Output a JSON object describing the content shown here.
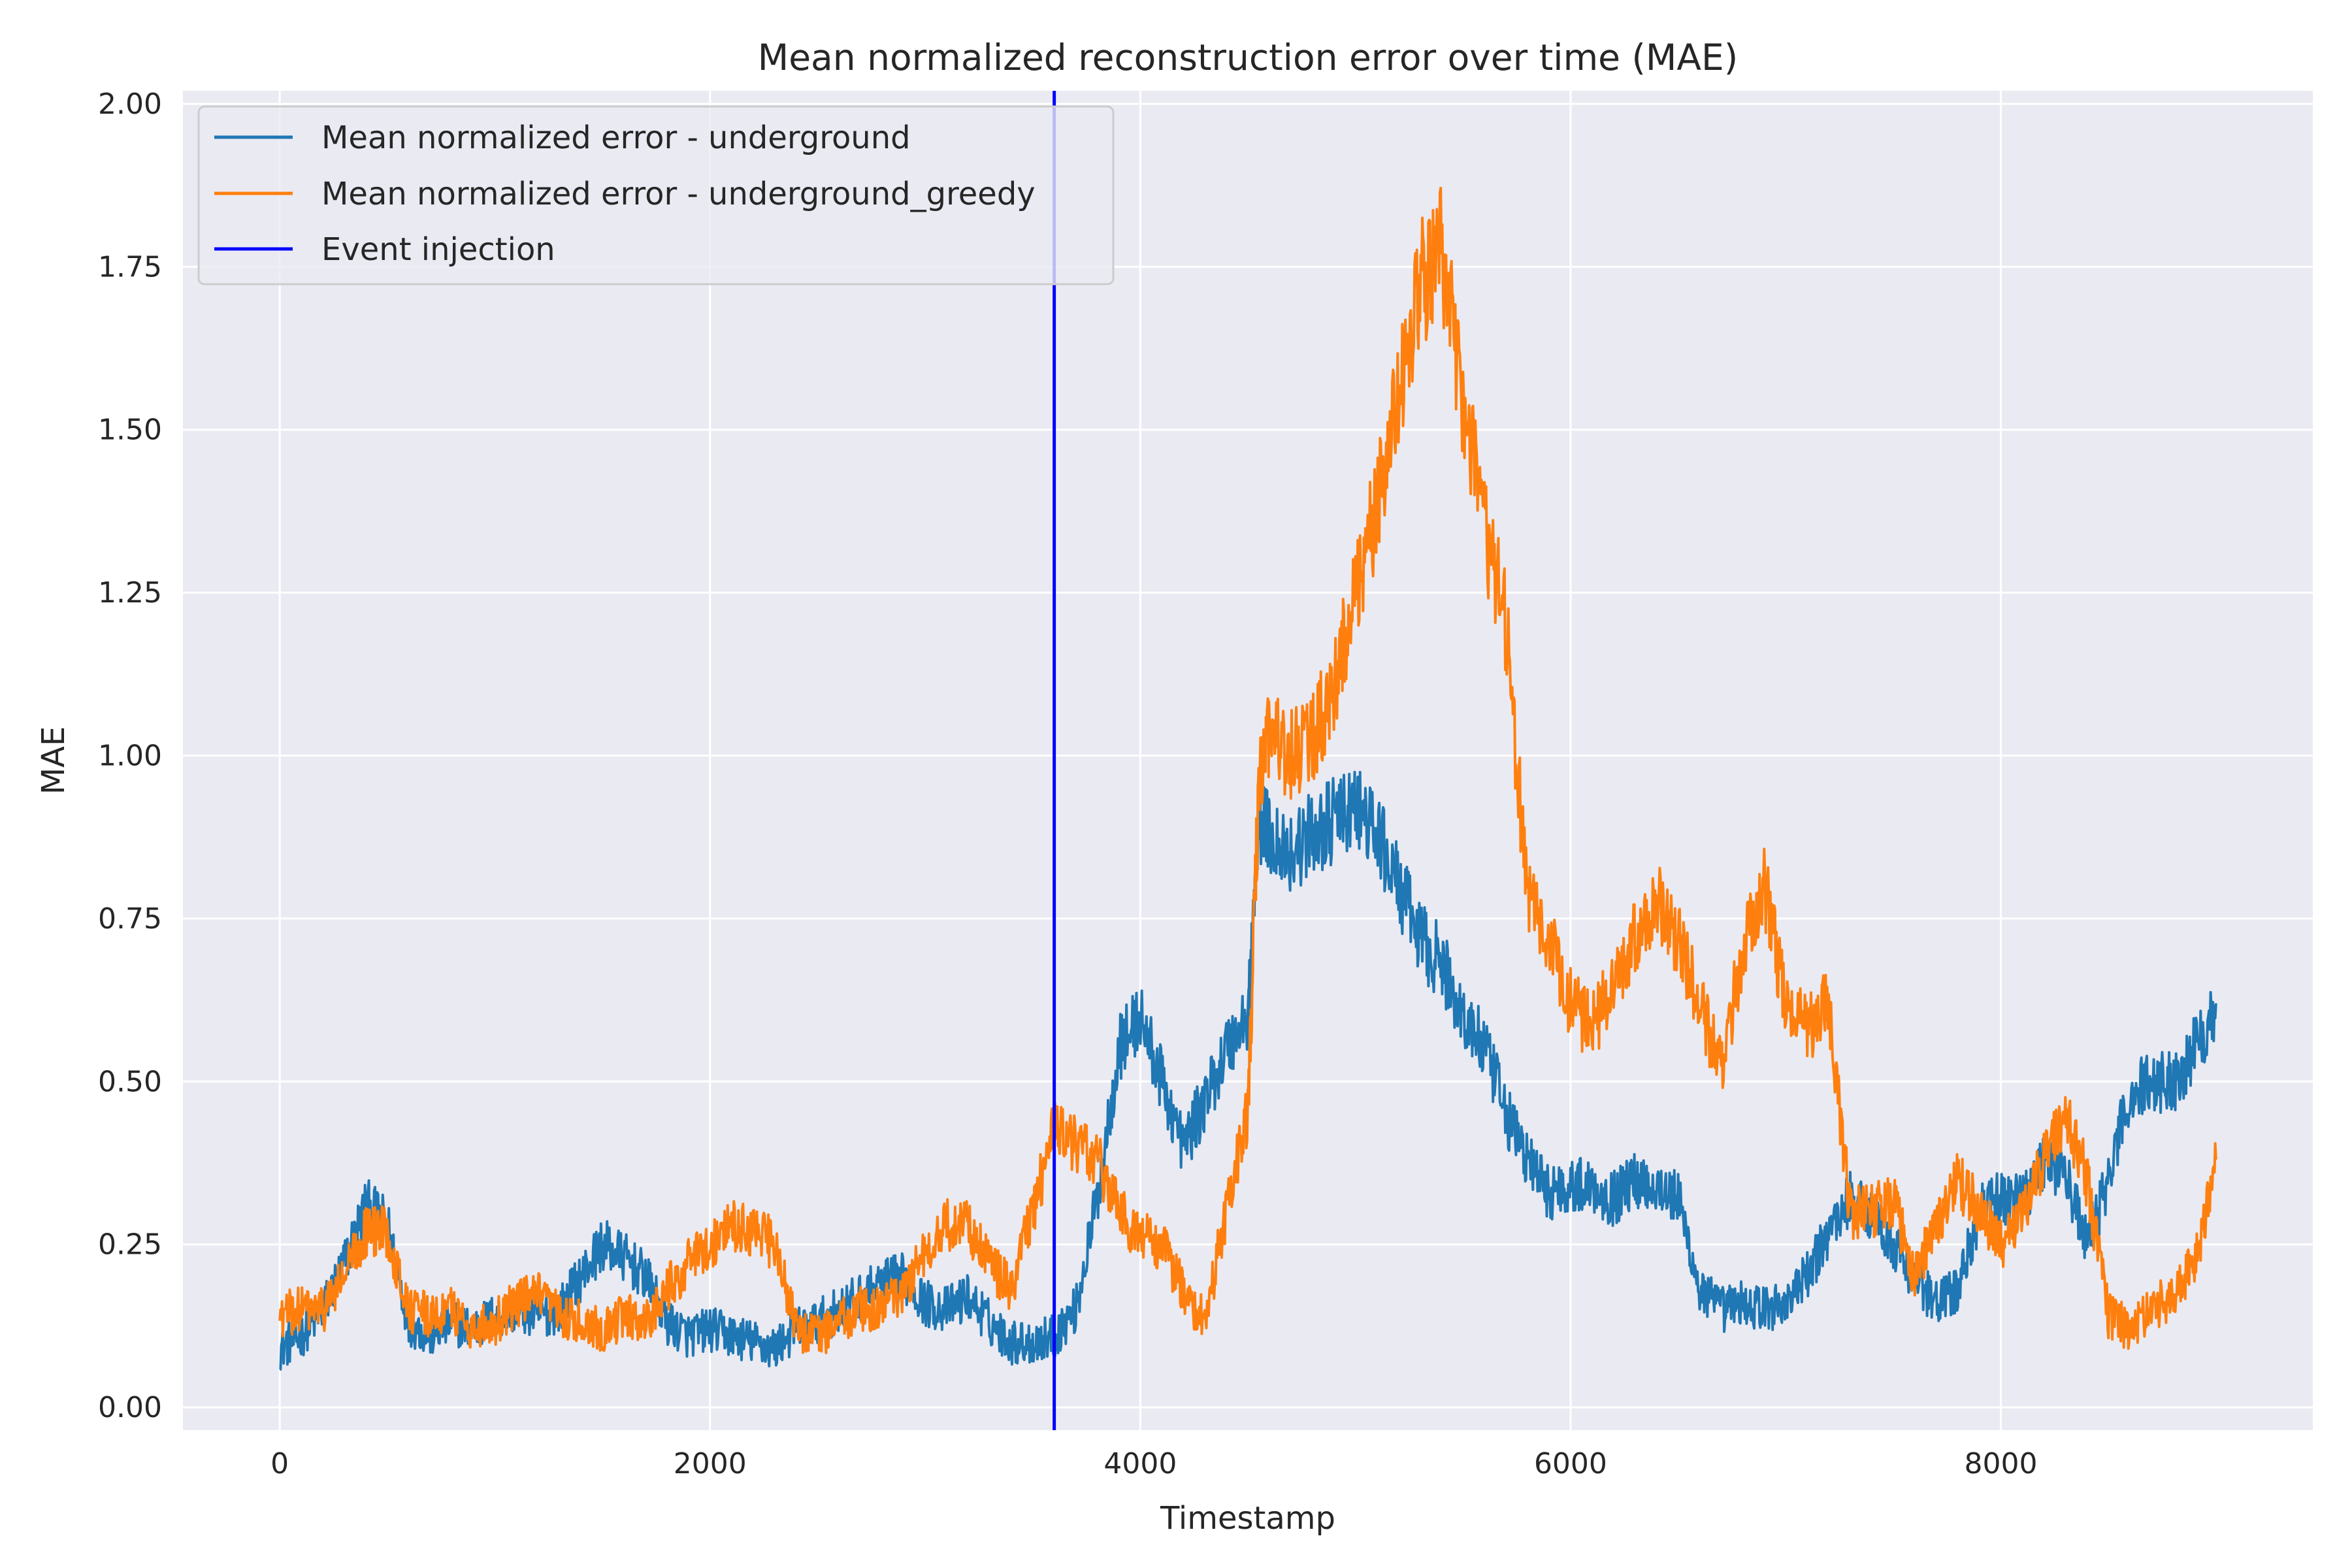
{
  "chart_data": {
    "type": "line",
    "title": "Mean normalized reconstruction error over time (MAE)",
    "xlabel": "Timestamp",
    "ylabel": "MAE",
    "xlim": [
      -450,
      9450
    ],
    "ylim": [
      -0.035,
      2.02
    ],
    "x_ticks": [
      0,
      2000,
      4000,
      6000,
      8000
    ],
    "x_tick_labels": [
      "0",
      "2000",
      "4000",
      "6000",
      "8000"
    ],
    "y_ticks": [
      0,
      0.25,
      0.5,
      0.75,
      1.0,
      1.25,
      1.5,
      1.75,
      2.0
    ],
    "y_tick_labels": [
      "0.00",
      "0.25",
      "0.50",
      "0.75",
      "1.00",
      "1.25",
      "1.50",
      "1.75",
      "2.00"
    ],
    "grid": true,
    "legend_position": "top-left",
    "background": "#eaeaf2",
    "noise_note": "high-frequency fluctuation approx ±0.05 around the listed values",
    "series": [
      {
        "name": "Mean normalized error - underground",
        "color": "#1f77b4",
        "x": [
          0,
          100,
          200,
          300,
          400,
          500,
          600,
          700,
          800,
          900,
          1000,
          1100,
          1200,
          1300,
          1400,
          1500,
          1600,
          1700,
          1800,
          1900,
          2000,
          2100,
          2200,
          2300,
          2400,
          2500,
          2600,
          2700,
          2800,
          2900,
          3000,
          3100,
          3200,
          3300,
          3400,
          3500,
          3600,
          3700,
          3800,
          3900,
          4000,
          4100,
          4200,
          4300,
          4400,
          4500,
          4550,
          4600,
          4700,
          4800,
          4900,
          5000,
          5100,
          5200,
          5300,
          5400,
          5500,
          5600,
          5700,
          5800,
          5900,
          6000,
          6100,
          6200,
          6300,
          6400,
          6500,
          6600,
          6700,
          6800,
          6900,
          7000,
          7100,
          7200,
          7300,
          7400,
          7500,
          7600,
          7700,
          7800,
          7900,
          8000,
          8100,
          8200,
          8300,
          8400,
          8500,
          8600,
          8700,
          8800,
          8900,
          9000
        ],
        "values": [
          0.09,
          0.11,
          0.15,
          0.22,
          0.31,
          0.28,
          0.13,
          0.11,
          0.13,
          0.12,
          0.14,
          0.15,
          0.14,
          0.15,
          0.2,
          0.25,
          0.23,
          0.2,
          0.13,
          0.11,
          0.12,
          0.11,
          0.1,
          0.09,
          0.12,
          0.13,
          0.15,
          0.17,
          0.19,
          0.2,
          0.16,
          0.15,
          0.17,
          0.13,
          0.1,
          0.1,
          0.11,
          0.15,
          0.32,
          0.55,
          0.6,
          0.5,
          0.4,
          0.47,
          0.55,
          0.6,
          0.9,
          0.88,
          0.85,
          0.88,
          0.9,
          0.92,
          0.88,
          0.8,
          0.72,
          0.68,
          0.6,
          0.55,
          0.45,
          0.38,
          0.33,
          0.34,
          0.34,
          0.32,
          0.35,
          0.34,
          0.32,
          0.18,
          0.15,
          0.16,
          0.15,
          0.16,
          0.2,
          0.27,
          0.32,
          0.3,
          0.25,
          0.2,
          0.16,
          0.18,
          0.3,
          0.32,
          0.32,
          0.38,
          0.36,
          0.25,
          0.35,
          0.48,
          0.5,
          0.5,
          0.55,
          0.62
        ]
      },
      {
        "name": "Mean normalized error - underground_greedy",
        "color": "#ff7f0e",
        "x": [
          0,
          100,
          200,
          300,
          400,
          500,
          600,
          700,
          800,
          900,
          1000,
          1100,
          1200,
          1300,
          1400,
          1500,
          1600,
          1700,
          1800,
          1900,
          2000,
          2100,
          2200,
          2300,
          2400,
          2500,
          2600,
          2700,
          2800,
          2900,
          3000,
          3100,
          3200,
          3300,
          3400,
          3500,
          3600,
          3700,
          3800,
          3900,
          4000,
          4100,
          4200,
          4300,
          4400,
          4500,
          4550,
          4600,
          4700,
          4800,
          4900,
          5000,
          5100,
          5200,
          5300,
          5400,
          5500,
          5600,
          5700,
          5800,
          5900,
          6000,
          6100,
          6200,
          6300,
          6400,
          6500,
          6600,
          6700,
          6800,
          6900,
          7000,
          7100,
          7200,
          7300,
          7400,
          7500,
          7600,
          7700,
          7800,
          7900,
          8000,
          8100,
          8200,
          8300,
          8400,
          8500,
          8600,
          8700,
          8800,
          8900,
          9000
        ],
        "values": [
          0.14,
          0.15,
          0.15,
          0.2,
          0.27,
          0.27,
          0.15,
          0.14,
          0.15,
          0.12,
          0.13,
          0.16,
          0.17,
          0.14,
          0.13,
          0.12,
          0.14,
          0.13,
          0.18,
          0.22,
          0.25,
          0.28,
          0.27,
          0.25,
          0.12,
          0.11,
          0.13,
          0.15,
          0.15,
          0.18,
          0.24,
          0.28,
          0.28,
          0.22,
          0.18,
          0.3,
          0.43,
          0.4,
          0.38,
          0.3,
          0.26,
          0.25,
          0.18,
          0.13,
          0.3,
          0.45,
          0.95,
          1.03,
          1.0,
          1.03,
          1.1,
          1.25,
          1.38,
          1.55,
          1.72,
          1.78,
          1.55,
          1.35,
          1.2,
          0.78,
          0.72,
          0.62,
          0.58,
          0.65,
          0.72,
          0.78,
          0.72,
          0.62,
          0.52,
          0.7,
          0.8,
          0.62,
          0.58,
          0.62,
          0.3,
          0.3,
          0.32,
          0.2,
          0.28,
          0.35,
          0.3,
          0.25,
          0.3,
          0.38,
          0.45,
          0.35,
          0.14,
          0.12,
          0.15,
          0.17,
          0.22,
          0.38
        ]
      },
      {
        "name": "Event injection",
        "color": "#0000ff",
        "type": "vline",
        "x": 3600
      }
    ]
  }
}
